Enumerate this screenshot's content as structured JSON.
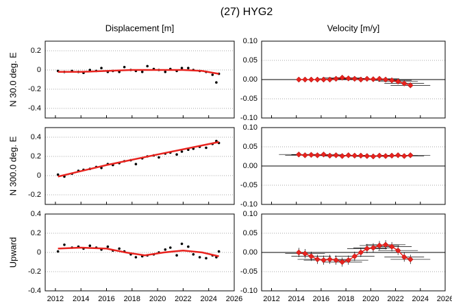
{
  "title": "(27) HYG2",
  "chart_data": [
    {
      "type": "scatter",
      "title": "Displacement [m]",
      "ylabel": "N  30.0 deg. E",
      "xlim": [
        2011.2,
        2026
      ],
      "xticks": [
        2012,
        2014,
        2016,
        2018,
        2020,
        2022,
        2024,
        2026
      ],
      "show_xtick_labels": false,
      "ylim": [
        -0.5,
        0.3
      ],
      "yticks": [
        -0.4,
        -0.2,
        0.0,
        0.2
      ],
      "grid": true,
      "series": [
        {
          "kind": "points",
          "color": "#000000",
          "x": [
            2012.2,
            2012.7,
            2013.3,
            2013.8,
            2014.2,
            2014.7,
            2015.2,
            2015.6,
            2016.1,
            2016.5,
            2017.0,
            2017.4,
            2017.9,
            2018.3,
            2018.8,
            2019.2,
            2019.7,
            2020.1,
            2020.6,
            2021.0,
            2021.5,
            2021.9,
            2022.4,
            2022.8,
            2023.3,
            2023.8,
            2024.3,
            2024.6,
            2024.8
          ],
          "values": [
            -0.01,
            -0.02,
            -0.01,
            -0.02,
            -0.03,
            0.0,
            -0.01,
            0.02,
            -0.02,
            -0.01,
            -0.02,
            0.03,
            0.0,
            -0.01,
            -0.02,
            0.04,
            0.01,
            0.0,
            -0.02,
            0.01,
            -0.01,
            0.02,
            0.02,
            0.0,
            -0.01,
            -0.02,
            -0.05,
            -0.13,
            -0.04
          ]
        },
        {
          "kind": "line",
          "color": "#e8231e",
          "x": [
            2012.2,
            2014,
            2016,
            2018,
            2020,
            2022,
            2023.5,
            2024.8
          ],
          "values": [
            -0.02,
            -0.02,
            -0.01,
            0.0,
            0.0,
            0.0,
            -0.01,
            -0.04
          ]
        }
      ]
    },
    {
      "type": "scatter",
      "title": "Velocity [m/y]",
      "xlim": [
        2011.2,
        2026
      ],
      "xticks": [
        2012,
        2014,
        2016,
        2018,
        2020,
        2022,
        2024,
        2026
      ],
      "show_xtick_labels": false,
      "ylim": [
        -0.1,
        0.1
      ],
      "yticks": [
        {
          "value": -0.1,
          "label": "-0.10"
        },
        {
          "value": -0.05,
          "label": "-0.05"
        },
        {
          "value": 0,
          "label": "0.00"
        },
        {
          "value": 0.05,
          "label": "0.05"
        },
        {
          "value": 0.1,
          "label": "0.10"
        }
      ],
      "grid": true,
      "zero_line": true,
      "series": [
        {
          "kind": "errorbar",
          "color": "#e8231e",
          "xerr": 1.6,
          "x": [
            2014.2,
            2014.7,
            2015.2,
            2015.7,
            2016.2,
            2016.7,
            2017.2,
            2017.7,
            2018.2,
            2018.7,
            2019.2,
            2019.7,
            2020.2,
            2020.7,
            2021.2,
            2021.7,
            2022.2,
            2022.7,
            2023.2
          ],
          "values": [
            0,
            0,
            0,
            0,
            0,
            0,
            0.002,
            0.005,
            0.003,
            0.002,
            0,
            0.002,
            0.001,
            0.002,
            0,
            -0.002,
            -0.005,
            -0.01,
            -0.015
          ],
          "errors": [
            0.005,
            0.005,
            0.005,
            0.005,
            0.005,
            0.005,
            0.005,
            0.005,
            0.005,
            0.005,
            0.005,
            0.005,
            0.005,
            0.005,
            0.005,
            0.005,
            0.005,
            0.006,
            0.006
          ]
        }
      ]
    },
    {
      "type": "scatter",
      "ylabel": "N 300.0 deg. E",
      "xlim": [
        2011.2,
        2026
      ],
      "xticks": [
        2012,
        2014,
        2016,
        2018,
        2020,
        2022,
        2024,
        2026
      ],
      "show_xtick_labels": false,
      "ylim": [
        -0.3,
        0.5
      ],
      "yticks": [
        -0.2,
        0.0,
        0.2,
        0.4
      ],
      "grid": true,
      "series": [
        {
          "kind": "points",
          "color": "#000000",
          "x": [
            2012.2,
            2012.7,
            2013.3,
            2013.8,
            2014.2,
            2014.7,
            2015.2,
            2015.6,
            2016.1,
            2016.5,
            2017.0,
            2017.4,
            2017.9,
            2018.3,
            2018.8,
            2019.2,
            2019.7,
            2020.1,
            2020.6,
            2021.0,
            2021.5,
            2021.9,
            2022.4,
            2022.8,
            2023.3,
            2023.8,
            2024.3,
            2024.6,
            2024.8
          ],
          "values": [
            0.01,
            -0.01,
            0.02,
            0.05,
            0.06,
            0.07,
            0.09,
            0.08,
            0.12,
            0.11,
            0.13,
            0.15,
            0.16,
            0.12,
            0.18,
            0.2,
            0.21,
            0.19,
            0.23,
            0.24,
            0.22,
            0.25,
            0.27,
            0.28,
            0.3,
            0.29,
            0.33,
            0.36,
            0.34
          ]
        },
        {
          "kind": "line",
          "color": "#e8231e",
          "x": [
            2012.2,
            2016,
            2020,
            2024.8
          ],
          "values": [
            -0.01,
            0.11,
            0.22,
            0.35
          ]
        }
      ]
    },
    {
      "type": "scatter",
      "xlim": [
        2011.2,
        2026
      ],
      "xticks": [
        2012,
        2014,
        2016,
        2018,
        2020,
        2022,
        2024,
        2026
      ],
      "show_xtick_labels": false,
      "ylim": [
        -0.1,
        0.1
      ],
      "yticks": [
        {
          "value": -0.1,
          "label": "-0.10"
        },
        {
          "value": -0.05,
          "label": "-0.05"
        },
        {
          "value": 0,
          "label": "0.00"
        },
        {
          "value": 0.05,
          "label": "0.05"
        },
        {
          "value": 0.1,
          "label": "0.10"
        }
      ],
      "grid": true,
      "zero_line": true,
      "series": [
        {
          "kind": "errorbar",
          "color": "#e8231e",
          "xerr": 1.6,
          "x": [
            2014.2,
            2014.7,
            2015.2,
            2015.7,
            2016.2,
            2016.7,
            2017.2,
            2017.7,
            2018.2,
            2018.7,
            2019.2,
            2019.7,
            2020.2,
            2020.7,
            2021.2,
            2021.7,
            2022.2,
            2022.7,
            2023.2
          ],
          "values": [
            0.03,
            0.028,
            0.029,
            0.028,
            0.03,
            0.027,
            0.028,
            0.026,
            0.028,
            0.027,
            0.027,
            0.026,
            0.025,
            0.027,
            0.026,
            0.027,
            0.028,
            0.026,
            0.028
          ],
          "errors": [
            0.004,
            0.004,
            0.004,
            0.004,
            0.004,
            0.004,
            0.004,
            0.004,
            0.004,
            0.004,
            0.004,
            0.004,
            0.004,
            0.004,
            0.004,
            0.004,
            0.004,
            0.004,
            0.004
          ]
        }
      ]
    },
    {
      "type": "scatter",
      "ylabel": "Upward",
      "xlim": [
        2011.2,
        2026
      ],
      "xticks": [
        2012,
        2014,
        2016,
        2018,
        2020,
        2022,
        2024,
        2026
      ],
      "show_xtick_labels": true,
      "ylim": [
        -0.4,
        0.4
      ],
      "yticks": [
        -0.4,
        -0.2,
        0.0,
        0.2,
        0.4
      ],
      "grid": true,
      "series": [
        {
          "kind": "points",
          "color": "#000000",
          "x": [
            2012.2,
            2012.7,
            2013.3,
            2013.8,
            2014.2,
            2014.7,
            2015.2,
            2015.6,
            2016.1,
            2016.5,
            2017.0,
            2017.4,
            2017.9,
            2018.3,
            2018.8,
            2019.2,
            2019.7,
            2020.1,
            2020.6,
            2021.0,
            2021.5,
            2021.9,
            2022.4,
            2022.8,
            2023.3,
            2023.8,
            2024.3,
            2024.6,
            2024.8
          ],
          "values": [
            0.01,
            0.08,
            0.05,
            0.06,
            0.04,
            0.07,
            0.05,
            0.03,
            0.06,
            0.02,
            0.04,
            0.01,
            -0.02,
            -0.05,
            -0.04,
            -0.03,
            -0.02,
            0.0,
            0.03,
            0.05,
            -0.03,
            0.09,
            0.06,
            -0.02,
            -0.05,
            -0.06,
            -0.03,
            -0.05,
            0.01
          ]
        },
        {
          "kind": "line",
          "color": "#e8231e",
          "x": [
            2012.2,
            2014,
            2016,
            2017.5,
            2019,
            2020.5,
            2022,
            2023.5,
            2024.8
          ],
          "values": [
            0.04,
            0.05,
            0.04,
            0.0,
            -0.03,
            0.0,
            0.02,
            0.0,
            -0.04
          ]
        }
      ]
    },
    {
      "type": "scatter",
      "xlim": [
        2011.2,
        2026
      ],
      "xticks": [
        2012,
        2014,
        2016,
        2018,
        2020,
        2022,
        2024,
        2026
      ],
      "show_xtick_labels": true,
      "ylim": [
        -0.1,
        0.1
      ],
      "yticks": [
        {
          "value": -0.1,
          "label": "-0.10"
        },
        {
          "value": -0.05,
          "label": "-0.05"
        },
        {
          "value": 0,
          "label": "0.00"
        },
        {
          "value": 0.05,
          "label": "0.05"
        },
        {
          "value": 0.1,
          "label": "0.10"
        }
      ],
      "grid": true,
      "zero_line": true,
      "series": [
        {
          "kind": "errorbar",
          "color": "#e8231e",
          "xerr": 1.6,
          "x": [
            2014.2,
            2014.7,
            2015.2,
            2015.7,
            2016.2,
            2016.7,
            2017.2,
            2017.7,
            2018.2,
            2018.7,
            2019.2,
            2019.7,
            2020.2,
            2020.7,
            2021.2,
            2021.7,
            2022.2,
            2022.7,
            2023.2
          ],
          "values": [
            0.0,
            -0.003,
            -0.01,
            -0.018,
            -0.02,
            -0.018,
            -0.02,
            -0.025,
            -0.02,
            -0.01,
            0.0,
            0.01,
            0.012,
            0.018,
            0.02,
            0.015,
            0.005,
            -0.012,
            -0.018
          ],
          "errors": [
            0.012,
            0.012,
            0.012,
            0.012,
            0.012,
            0.012,
            0.012,
            0.012,
            0.012,
            0.012,
            0.012,
            0.012,
            0.012,
            0.012,
            0.012,
            0.012,
            0.012,
            0.012,
            0.012
          ]
        }
      ]
    }
  ]
}
